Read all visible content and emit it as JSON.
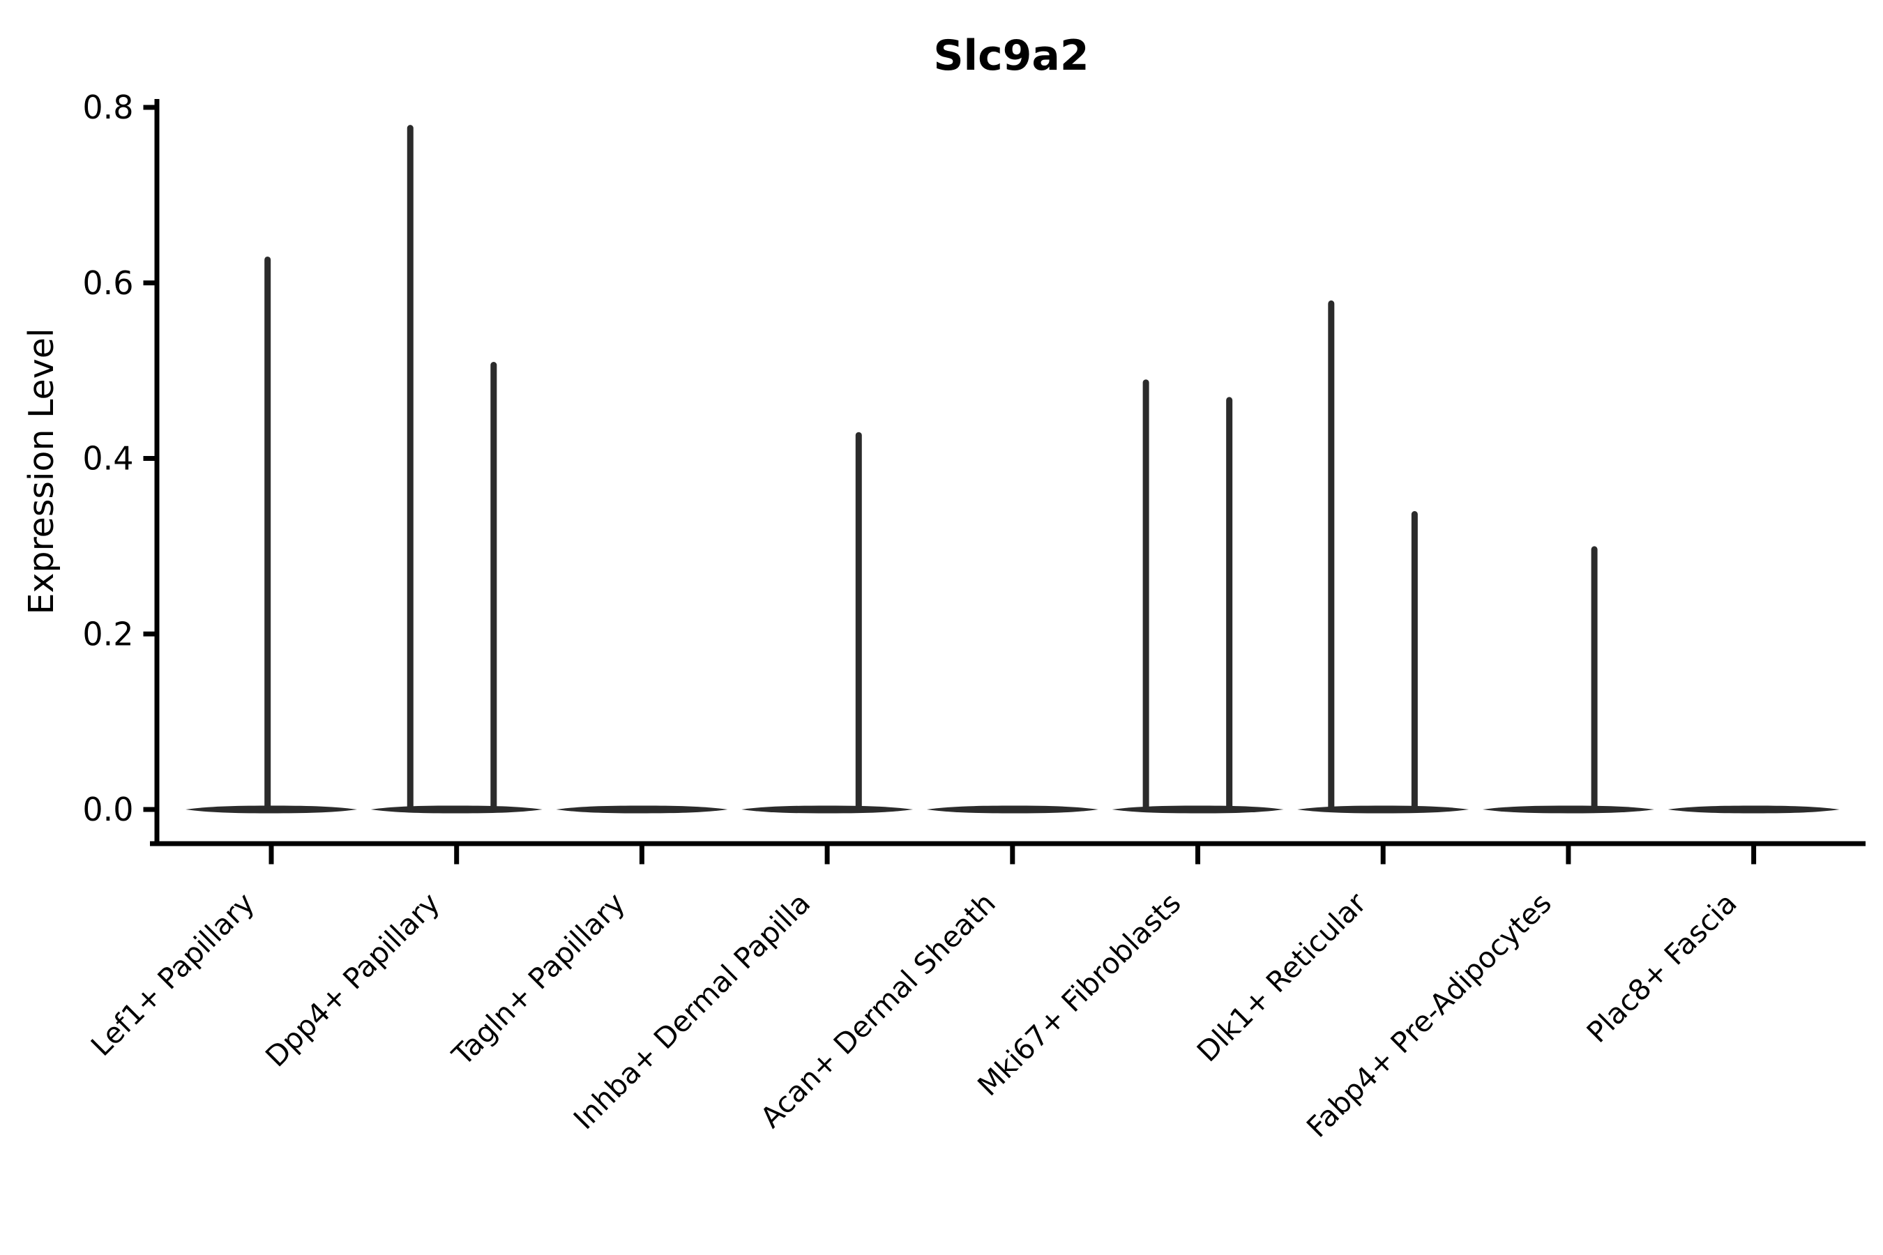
{
  "chart_data": {
    "type": "violin",
    "title": "Slc9a2",
    "xlabel": "",
    "ylabel": "Expression Level",
    "ylim": [
      0.0,
      0.815
    ],
    "ytick_values": [
      0.0,
      0.2,
      0.4,
      0.6,
      0.8
    ],
    "ytick_labels": [
      "0.0",
      "0.2",
      "0.4",
      "0.6",
      "0.8"
    ],
    "grid": false,
    "legend": false,
    "baseline_value": 0.0,
    "violin_body_halfwidth_frac": 0.463,
    "categories": [
      "Lef1+ Papillary",
      "Dpp4+ Papillary",
      "Tagln+ Papillary",
      "Inhba+ Dermal Papilla",
      "Acan+ Dermal Sheath",
      "Mki67+ Fibroblasts",
      "Dlk1+ Reticular",
      "Fabp4+ Pre-Adipocytes",
      "Plac8+ Fascia"
    ],
    "series": [
      {
        "category": "Lef1+ Papillary",
        "max_expression": 0.63,
        "spikes": [
          {
            "offset_frac": -0.02,
            "value": 0.63
          }
        ]
      },
      {
        "category": "Dpp4+ Papillary",
        "max_expression": 0.78,
        "spikes": [
          {
            "offset_frac": -0.25,
            "value": 0.78
          },
          {
            "offset_frac": 0.2,
            "value": 0.51
          }
        ]
      },
      {
        "category": "Tagln+ Papillary",
        "max_expression": 0.0,
        "spikes": []
      },
      {
        "category": "Inhba+ Dermal Papilla",
        "max_expression": 0.43,
        "spikes": [
          {
            "offset_frac": 0.17,
            "value": 0.43
          }
        ]
      },
      {
        "category": "Acan+ Dermal Sheath",
        "max_expression": 0.0,
        "spikes": []
      },
      {
        "category": "Mki67+ Fibroblasts",
        "max_expression": 0.49,
        "spikes": [
          {
            "offset_frac": -0.28,
            "value": 0.49
          },
          {
            "offset_frac": 0.17,
            "value": 0.47
          }
        ]
      },
      {
        "category": "Dlk1+ Reticular",
        "max_expression": 0.58,
        "spikes": [
          {
            "offset_frac": -0.28,
            "value": 0.58
          },
          {
            "offset_frac": 0.17,
            "value": 0.34
          }
        ]
      },
      {
        "category": "Fabp4+ Pre-Adipocytes",
        "max_expression": 0.3,
        "spikes": [
          {
            "offset_frac": 0.14,
            "value": 0.3
          }
        ]
      },
      {
        "category": "Plac8+ Fascia",
        "max_expression": 0.0,
        "spikes": []
      }
    ],
    "colors": {
      "violin": "#2b2b2b",
      "axis": "#000000",
      "text": "#000000",
      "background": "#ffffff"
    }
  }
}
